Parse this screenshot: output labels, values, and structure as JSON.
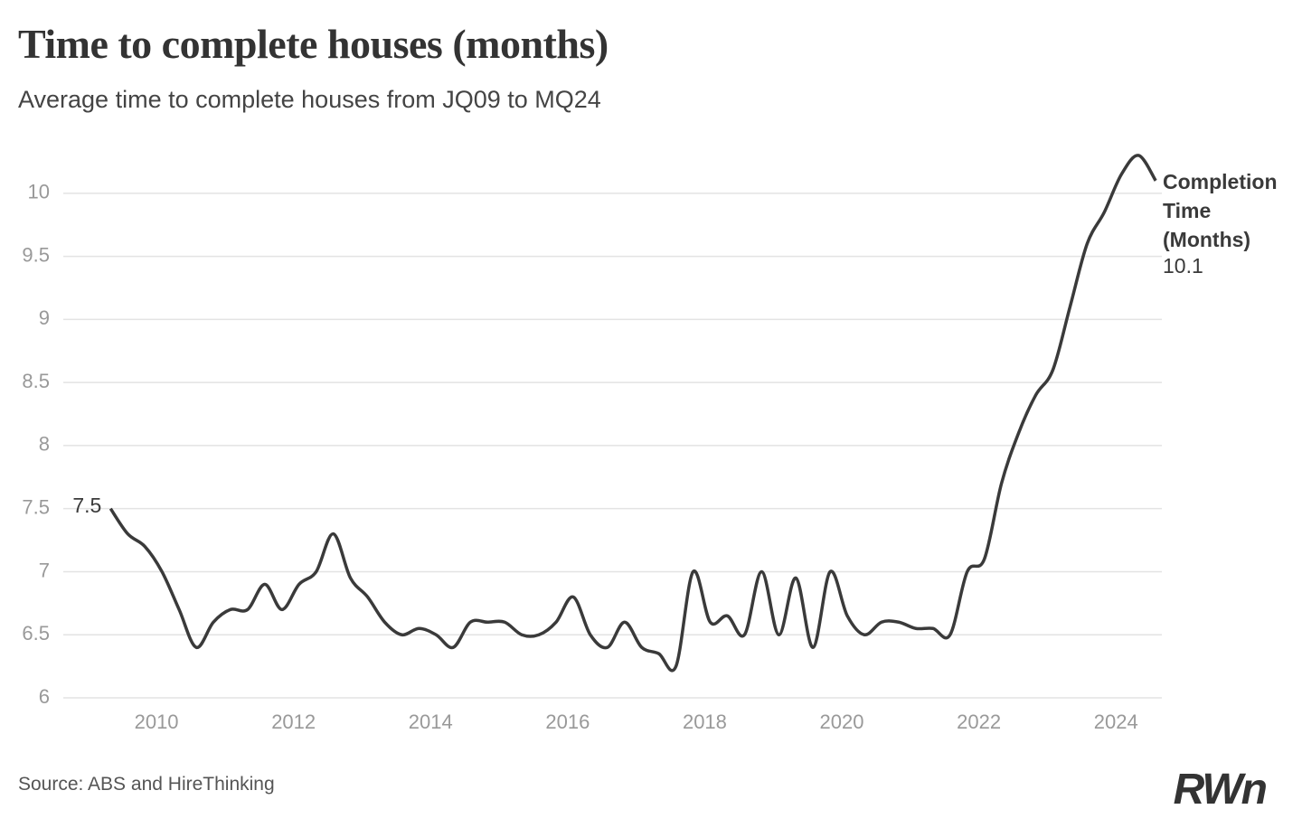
{
  "chart_data": {
    "type": "line",
    "title": "Time to complete houses (months)",
    "subtitle": "Average time to complete houses from JQ09 to MQ24",
    "source": "Source: ABS and HireThinking",
    "logo": "RWn",
    "series_name": "Completion Time (Months)",
    "color": "#3a3a3a",
    "grid": true,
    "x": [
      2009.33,
      2009.58,
      2009.83,
      2010.08,
      2010.33,
      2010.58,
      2010.83,
      2011.08,
      2011.33,
      2011.58,
      2011.83,
      2012.08,
      2012.33,
      2012.58,
      2012.83,
      2013.08,
      2013.33,
      2013.58,
      2013.83,
      2014.08,
      2014.33,
      2014.58,
      2014.83,
      2015.08,
      2015.33,
      2015.58,
      2015.83,
      2016.08,
      2016.33,
      2016.58,
      2016.83,
      2017.08,
      2017.33,
      2017.58,
      2017.83,
      2018.08,
      2018.33,
      2018.58,
      2018.83,
      2019.08,
      2019.33,
      2019.58,
      2019.83,
      2020.08,
      2020.33,
      2020.58,
      2020.83,
      2021.08,
      2021.33,
      2021.58,
      2021.83,
      2022.08,
      2022.33,
      2022.58,
      2022.83,
      2023.08,
      2023.33,
      2023.58,
      2023.83,
      2024.08,
      2024.33,
      2024.58
    ],
    "values": [
      7.5,
      7.3,
      7.2,
      7.0,
      6.7,
      6.4,
      6.6,
      6.7,
      6.7,
      6.9,
      6.7,
      6.9,
      7.0,
      7.3,
      6.95,
      6.8,
      6.6,
      6.5,
      6.55,
      6.5,
      6.4,
      6.6,
      6.6,
      6.6,
      6.5,
      6.5,
      6.6,
      6.8,
      6.5,
      6.4,
      6.6,
      6.4,
      6.35,
      6.25,
      7.0,
      6.6,
      6.65,
      6.5,
      7.0,
      6.5,
      6.95,
      6.4,
      7.0,
      6.65,
      6.5,
      6.6,
      6.6,
      6.55,
      6.55,
      6.5,
      7.0,
      7.1,
      7.7,
      8.1,
      8.4,
      8.6,
      9.1,
      9.6,
      9.85,
      10.15,
      10.3,
      10.1
    ],
    "xlim": [
      2008.64,
      2024.67
    ],
    "xticks": [
      2010,
      2012,
      2014,
      2016,
      2018,
      2020,
      2022,
      2024
    ],
    "ylim": [
      6,
      10.4
    ],
    "yticks": [
      6,
      6.5,
      7,
      7.5,
      8,
      8.5,
      9,
      9.5,
      10
    ]
  }
}
